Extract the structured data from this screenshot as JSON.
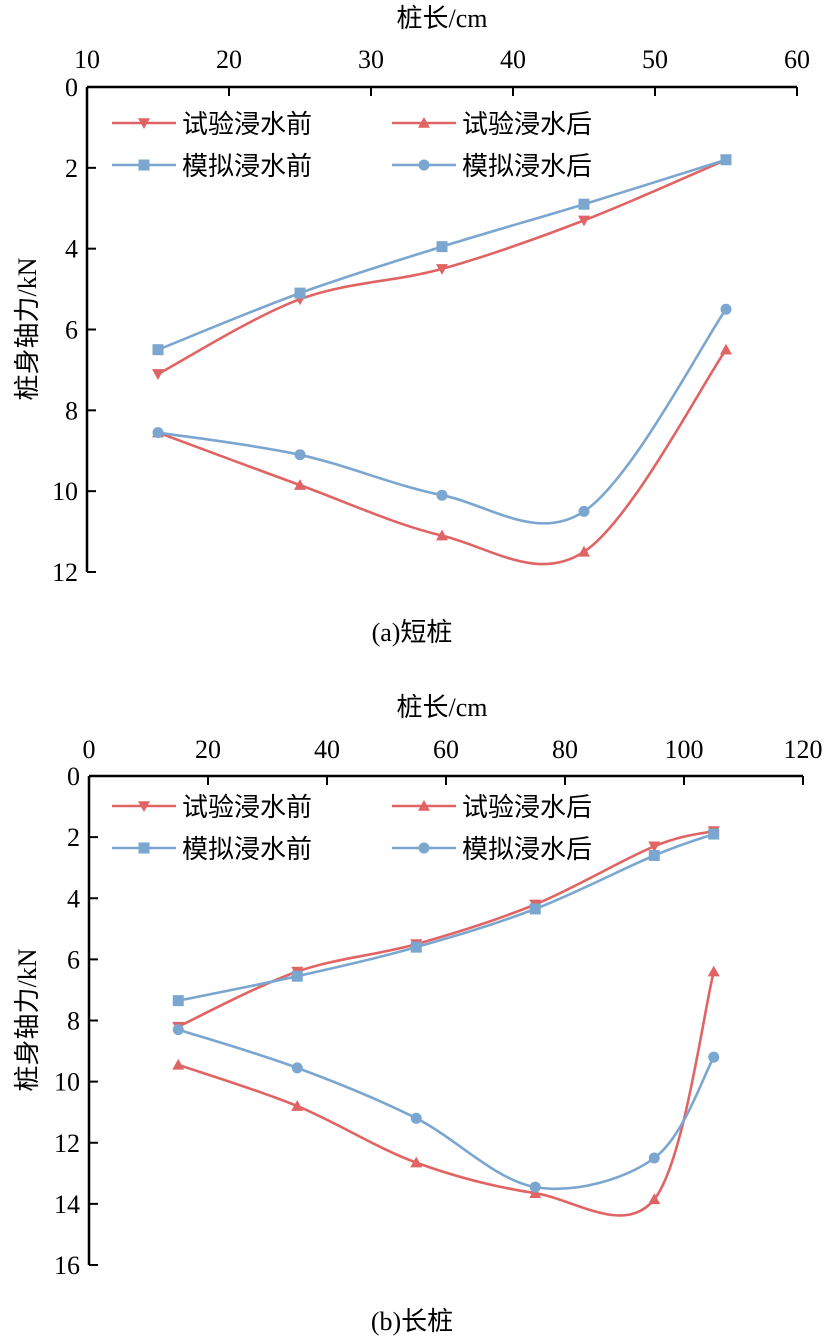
{
  "colors": {
    "red": "#E06464",
    "blue": "#7AA6CF",
    "axis": "#000000"
  },
  "chart_data": [
    {
      "type": "line",
      "caption": "(a)短桩",
      "xlabel": "桩长/cm",
      "ylabel": "桩身轴力/kN",
      "xlim": [
        10,
        60
      ],
      "ylim": [
        0,
        12
      ],
      "y_inverted": true,
      "x_axis_position": "top",
      "xticks": [
        "10",
        "20",
        "30",
        "40",
        "50",
        "60"
      ],
      "yticks": [
        "0",
        "2",
        "4",
        "6",
        "8",
        "10",
        "12"
      ],
      "legend_position": "top-left",
      "x": [
        15,
        25,
        35,
        45,
        55
      ],
      "series": [
        {
          "name": "试验浸水前",
          "color": "red",
          "marker": "triangle-down",
          "values": [
            7.1,
            5.25,
            4.5,
            3.3,
            1.8
          ]
        },
        {
          "name": "试验浸水后",
          "color": "red",
          "marker": "triangle-up",
          "values": [
            8.55,
            9.85,
            11.1,
            11.5,
            6.5
          ]
        },
        {
          "name": "模拟浸水前",
          "color": "blue",
          "marker": "square",
          "values": [
            6.5,
            5.1,
            3.95,
            2.9,
            1.8
          ]
        },
        {
          "name": "模拟浸水后",
          "color": "blue",
          "marker": "circle",
          "values": [
            8.55,
            9.1,
            10.1,
            10.5,
            5.5
          ]
        }
      ]
    },
    {
      "type": "line",
      "caption": "(b)长桩",
      "xlabel": "桩长/cm",
      "ylabel": "桩身轴力/kN",
      "xlim": [
        0,
        120
      ],
      "ylim": [
        0,
        16
      ],
      "y_inverted": true,
      "x_axis_position": "top",
      "xticks": [
        "0",
        "20",
        "40",
        "60",
        "80",
        "100",
        "120"
      ],
      "yticks": [
        "0",
        "2",
        "4",
        "6",
        "8",
        "10",
        "12",
        "14",
        "16"
      ],
      "legend_position": "top-left",
      "x": [
        15,
        35,
        55,
        75,
        95,
        105
      ],
      "series": [
        {
          "name": "试验浸水前",
          "color": "red",
          "marker": "triangle-down",
          "values": [
            8.2,
            6.4,
            5.5,
            4.2,
            2.3,
            1.8
          ]
        },
        {
          "name": "试验浸水后",
          "color": "red",
          "marker": "triangle-up",
          "values": [
            9.45,
            10.8,
            12.65,
            13.65,
            13.85,
            6.4
          ]
        },
        {
          "name": "模拟浸水前",
          "color": "blue",
          "marker": "square",
          "values": [
            7.35,
            6.55,
            5.6,
            4.35,
            2.6,
            1.9
          ]
        },
        {
          "name": "模拟浸水后",
          "color": "blue",
          "marker": "circle",
          "values": [
            8.3,
            9.55,
            11.2,
            13.45,
            12.5,
            9.2
          ]
        }
      ]
    }
  ]
}
